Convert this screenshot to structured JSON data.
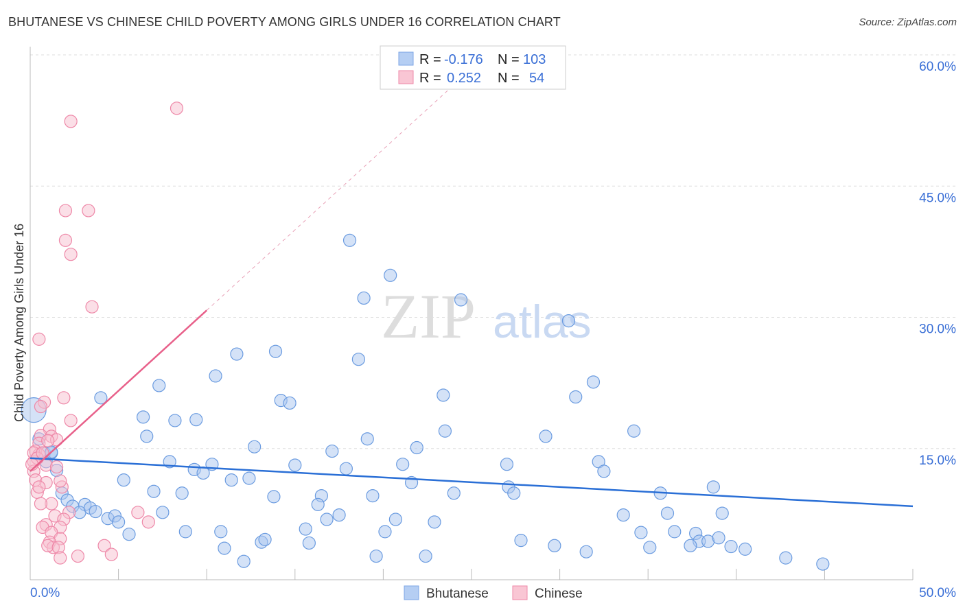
{
  "title": "BHUTANESE VS CHINESE CHILD POVERTY AMONG GIRLS UNDER 16 CORRELATION CHART",
  "source": "Source: ZipAtlas.com",
  "watermark": "ZIPatlas",
  "chart_data": {
    "type": "scatter",
    "xlabel": "",
    "ylabel": "Child Poverty Among Girls Under 16",
    "xlim": [
      0,
      50
    ],
    "ylim": [
      0,
      60
    ],
    "x_tick_labels": [
      "0.0%",
      "50.0%"
    ],
    "y_ticks": [
      15,
      30,
      45,
      60
    ],
    "y_tick_labels": [
      "15.0%",
      "30.0%",
      "45.0%",
      "60.0%"
    ],
    "grid": true,
    "legend_placement": "top-center",
    "legend": [
      {
        "name": "Bhutanese",
        "r_label": "R = ",
        "r": "-0.176",
        "n_label": "N = ",
        "n": "103"
      },
      {
        "name": "Chinese",
        "r_label": "R = ",
        "r": "0.252",
        "n_label": "N = ",
        "n": "54"
      }
    ],
    "series": [
      {
        "name": "Bhutanese",
        "color": "#6a9be0",
        "fill": "#a9c6f0",
        "trend": {
          "x": [
            0,
            50
          ],
          "y": [
            13.9,
            8.4
          ]
        },
        "points": [
          [
            18.1,
            38.8
          ],
          [
            20.4,
            34.8
          ],
          [
            18.9,
            32.2
          ],
          [
            24.4,
            32.0
          ],
          [
            30.5,
            29.6
          ],
          [
            11.7,
            25.8
          ],
          [
            13.9,
            26.1
          ],
          [
            18.6,
            25.2
          ],
          [
            10.5,
            23.3
          ],
          [
            31.9,
            22.6
          ],
          [
            7.3,
            22.2
          ],
          [
            4.0,
            20.8
          ],
          [
            14.2,
            20.5
          ],
          [
            14.7,
            20.2
          ],
          [
            23.4,
            21.1
          ],
          [
            30.9,
            20.9
          ],
          [
            6.4,
            18.6
          ],
          [
            8.2,
            18.2
          ],
          [
            9.4,
            18.3
          ],
          [
            6.6,
            16.4
          ],
          [
            19.1,
            16.1
          ],
          [
            23.5,
            17.0
          ],
          [
            29.2,
            16.4
          ],
          [
            34.2,
            17.0
          ],
          [
            12.7,
            15.2
          ],
          [
            21.9,
            15.1
          ],
          [
            17.1,
            14.7
          ],
          [
            7.9,
            13.5
          ],
          [
            32.2,
            13.5
          ],
          [
            10.3,
            13.2
          ],
          [
            9.3,
            12.6
          ],
          [
            9.8,
            12.2
          ],
          [
            15.0,
            13.1
          ],
          [
            17.9,
            12.7
          ],
          [
            21.1,
            13.2
          ],
          [
            27.0,
            13.2
          ],
          [
            32.5,
            12.4
          ],
          [
            5.3,
            11.4
          ],
          [
            11.4,
            11.4
          ],
          [
            12.4,
            11.6
          ],
          [
            21.6,
            11.1
          ],
          [
            27.1,
            10.6
          ],
          [
            7.0,
            10.1
          ],
          [
            8.6,
            9.9
          ],
          [
            13.8,
            9.5
          ],
          [
            16.5,
            9.6
          ],
          [
            19.4,
            9.6
          ],
          [
            24.0,
            9.9
          ],
          [
            27.4,
            9.9
          ],
          [
            35.7,
            9.9
          ],
          [
            38.7,
            10.6
          ],
          [
            1.8,
            9.9
          ],
          [
            2.1,
            9.1
          ],
          [
            3.1,
            8.6
          ],
          [
            2.4,
            8.4
          ],
          [
            2.8,
            7.7
          ],
          [
            3.4,
            8.2
          ],
          [
            3.7,
            7.8
          ],
          [
            4.4,
            7.0
          ],
          [
            4.8,
            7.3
          ],
          [
            5.0,
            6.6
          ],
          [
            7.5,
            7.7
          ],
          [
            16.3,
            8.6
          ],
          [
            17.5,
            7.4
          ],
          [
            16.8,
            6.9
          ],
          [
            20.7,
            6.9
          ],
          [
            22.9,
            6.6
          ],
          [
            33.6,
            7.4
          ],
          [
            36.1,
            7.6
          ],
          [
            39.2,
            7.6
          ],
          [
            5.6,
            5.2
          ],
          [
            8.8,
            5.5
          ],
          [
            10.8,
            5.5
          ],
          [
            15.6,
            5.8
          ],
          [
            20.1,
            5.5
          ],
          [
            27.8,
            4.5
          ],
          [
            34.6,
            5.4
          ],
          [
            36.5,
            5.5
          ],
          [
            37.7,
            5.3
          ],
          [
            37.9,
            4.4
          ],
          [
            38.4,
            4.4
          ],
          [
            39.0,
            4.8
          ],
          [
            39.7,
            3.8
          ],
          [
            37.4,
            3.9
          ],
          [
            13.1,
            4.3
          ],
          [
            13.3,
            4.6
          ],
          [
            15.8,
            4.2
          ],
          [
            11.0,
            3.6
          ],
          [
            29.7,
            3.9
          ],
          [
            31.5,
            3.2
          ],
          [
            35.1,
            3.7
          ],
          [
            40.5,
            3.5
          ],
          [
            12.1,
            2.1
          ],
          [
            19.6,
            2.7
          ],
          [
            22.4,
            2.7
          ],
          [
            42.8,
            2.5
          ],
          [
            44.9,
            1.8
          ],
          [
            0.5,
            16.1
          ],
          [
            0.8,
            14.5
          ],
          [
            1.2,
            14.5
          ],
          [
            0.9,
            13.5
          ],
          [
            1.5,
            12.5
          ],
          [
            1.2,
            14.6
          ]
        ],
        "big_point": [
          0.2,
          19.4
        ]
      },
      {
        "name": "Chinese",
        "color": "#ee88a8",
        "fill": "#f7bfd0",
        "trend": {
          "x": [
            0,
            10
          ],
          "y": [
            12.4,
            30.8
          ]
        },
        "trend_extension": {
          "x": [
            10,
            23.8
          ],
          "y": [
            30.8,
            56.2
          ]
        },
        "points": [
          [
            8.3,
            53.9
          ],
          [
            2.3,
            52.4
          ],
          [
            2.0,
            42.2
          ],
          [
            3.3,
            42.2
          ],
          [
            2.0,
            38.8
          ],
          [
            2.3,
            37.2
          ],
          [
            3.5,
            31.2
          ],
          [
            0.5,
            27.5
          ],
          [
            1.9,
            20.8
          ],
          [
            0.8,
            20.3
          ],
          [
            0.6,
            19.8
          ],
          [
            2.3,
            18.2
          ],
          [
            1.1,
            17.2
          ],
          [
            0.6,
            16.5
          ],
          [
            1.2,
            16.4
          ],
          [
            0.5,
            15.6
          ],
          [
            1.5,
            16.0
          ],
          [
            1.0,
            15.9
          ],
          [
            0.3,
            14.7
          ],
          [
            0.5,
            14.3
          ],
          [
            0.2,
            13.5
          ],
          [
            0.9,
            13.1
          ],
          [
            1.5,
            12.9
          ],
          [
            0.2,
            12.4
          ],
          [
            0.3,
            11.4
          ],
          [
            0.9,
            11.1
          ],
          [
            0.4,
            10.0
          ],
          [
            1.8,
            10.6
          ],
          [
            1.2,
            8.7
          ],
          [
            0.6,
            8.7
          ],
          [
            2.2,
            7.7
          ],
          [
            1.4,
            7.3
          ],
          [
            6.1,
            7.7
          ],
          [
            6.7,
            6.6
          ],
          [
            1.9,
            6.9
          ],
          [
            1.7,
            6.0
          ],
          [
            0.9,
            6.3
          ],
          [
            0.7,
            6.0
          ],
          [
            1.2,
            5.4
          ],
          [
            1.7,
            4.7
          ],
          [
            1.1,
            4.3
          ],
          [
            1.3,
            3.7
          ],
          [
            1.0,
            3.9
          ],
          [
            1.6,
            3.7
          ],
          [
            4.2,
            3.9
          ],
          [
            2.7,
            2.7
          ],
          [
            1.7,
            2.5
          ],
          [
            4.6,
            2.9
          ],
          [
            0.2,
            14.5
          ],
          [
            0.4,
            13.9
          ],
          [
            0.1,
            13.2
          ],
          [
            1.7,
            11.3
          ],
          [
            0.5,
            10.6
          ],
          [
            0.7,
            14.5
          ]
        ]
      }
    ]
  }
}
